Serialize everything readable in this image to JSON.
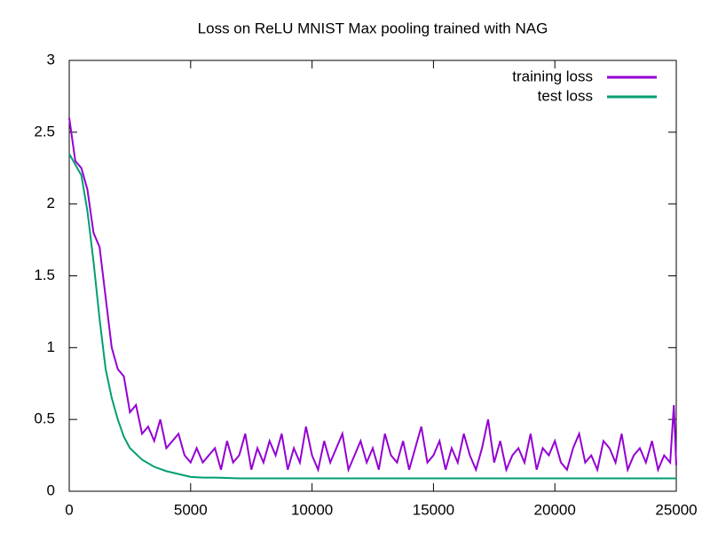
{
  "chart_data": {
    "type": "line",
    "title": "Loss on ReLU MNIST Max pooling trained with NAG",
    "xlim": [
      0,
      25000
    ],
    "xticks": [
      0,
      5000,
      10000,
      15000,
      20000,
      25000
    ],
    "ylim": [
      0,
      3
    ],
    "yticks": [
      0,
      0.5,
      1,
      1.5,
      2,
      2.5,
      3
    ],
    "legend": "top-right",
    "series": [
      {
        "name": "training loss",
        "color": "#9400d3",
        "x": [
          0,
          250,
          500,
          750,
          1000,
          1250,
          1500,
          1750,
          2000,
          2250,
          2500,
          2750,
          3000,
          3250,
          3500,
          3750,
          4000,
          4250,
          4500,
          4750,
          5000,
          5250,
          5500,
          5750,
          6000,
          6250,
          6500,
          6750,
          7000,
          7250,
          7500,
          7750,
          8000,
          8250,
          8500,
          8750,
          9000,
          9250,
          9500,
          9750,
          10000,
          10250,
          10500,
          10750,
          11000,
          11250,
          11500,
          11750,
          12000,
          12250,
          12500,
          12750,
          13000,
          13250,
          13500,
          13750,
          14000,
          14250,
          14500,
          14750,
          15000,
          15250,
          15500,
          15750,
          16000,
          16250,
          16500,
          16750,
          17000,
          17250,
          17500,
          17750,
          18000,
          18250,
          18500,
          18750,
          19000,
          19250,
          19500,
          19750,
          20000,
          20250,
          20500,
          20750,
          21000,
          21250,
          21500,
          21750,
          22000,
          22250,
          22500,
          22750,
          23000,
          23250,
          23500,
          23750,
          24000,
          24250,
          24500,
          24750,
          24900,
          25000
        ],
        "values": [
          2.6,
          2.3,
          2.25,
          2.1,
          1.8,
          1.7,
          1.35,
          1.0,
          0.85,
          0.8,
          0.55,
          0.6,
          0.4,
          0.45,
          0.35,
          0.5,
          0.3,
          0.35,
          0.4,
          0.25,
          0.2,
          0.3,
          0.2,
          0.25,
          0.3,
          0.15,
          0.35,
          0.2,
          0.25,
          0.4,
          0.15,
          0.3,
          0.2,
          0.35,
          0.25,
          0.4,
          0.15,
          0.3,
          0.2,
          0.45,
          0.25,
          0.15,
          0.35,
          0.2,
          0.3,
          0.4,
          0.15,
          0.25,
          0.35,
          0.2,
          0.3,
          0.15,
          0.4,
          0.25,
          0.2,
          0.35,
          0.15,
          0.3,
          0.45,
          0.2,
          0.25,
          0.35,
          0.15,
          0.3,
          0.2,
          0.4,
          0.25,
          0.15,
          0.3,
          0.5,
          0.2,
          0.35,
          0.15,
          0.25,
          0.3,
          0.2,
          0.4,
          0.15,
          0.3,
          0.25,
          0.35,
          0.2,
          0.15,
          0.3,
          0.4,
          0.2,
          0.25,
          0.15,
          0.35,
          0.3,
          0.2,
          0.4,
          0.15,
          0.25,
          0.3,
          0.2,
          0.35,
          0.15,
          0.25,
          0.2,
          0.6,
          0.18
        ]
      },
      {
        "name": "test loss",
        "color": "#009e73",
        "x": [
          0,
          500,
          750,
          1000,
          1250,
          1500,
          1750,
          2000,
          2250,
          2500,
          3000,
          3500,
          4000,
          4500,
          5000,
          5500,
          6000,
          7000,
          8000,
          10000,
          15000,
          20000,
          25000
        ],
        "values": [
          2.35,
          2.2,
          1.95,
          1.6,
          1.2,
          0.85,
          0.65,
          0.5,
          0.38,
          0.3,
          0.22,
          0.17,
          0.14,
          0.12,
          0.1,
          0.095,
          0.095,
          0.09,
          0.09,
          0.09,
          0.09,
          0.09,
          0.09
        ]
      }
    ]
  }
}
